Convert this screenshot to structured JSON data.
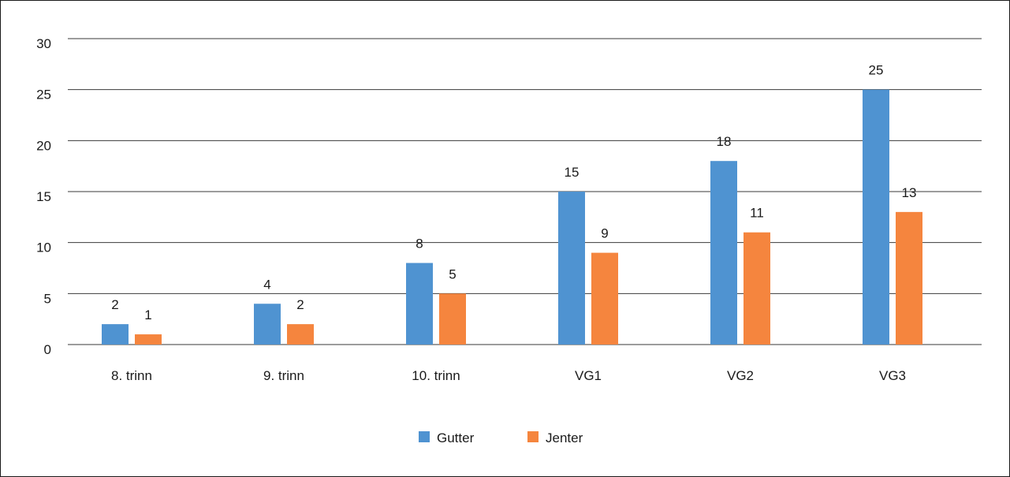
{
  "chart_data": {
    "type": "bar",
    "title": "",
    "xlabel": "",
    "ylabel": "",
    "categories": [
      "8. trinn",
      "9. trinn",
      "10. trinn",
      "VG1",
      "VG2",
      "VG3"
    ],
    "series": [
      {
        "name": "Gutter",
        "color": "#4f93d1",
        "values": [
          2,
          4,
          8,
          15,
          18,
          25
        ]
      },
      {
        "name": "Jenter",
        "color": "#f5853e",
        "values": [
          1,
          2,
          5,
          9,
          11,
          13
        ]
      }
    ],
    "ylim": [
      0,
      30
    ],
    "yticks": [
      0,
      5,
      10,
      15,
      20,
      25,
      30
    ],
    "grid": true,
    "legend_position": "bottom-center",
    "data_labels": true
  }
}
